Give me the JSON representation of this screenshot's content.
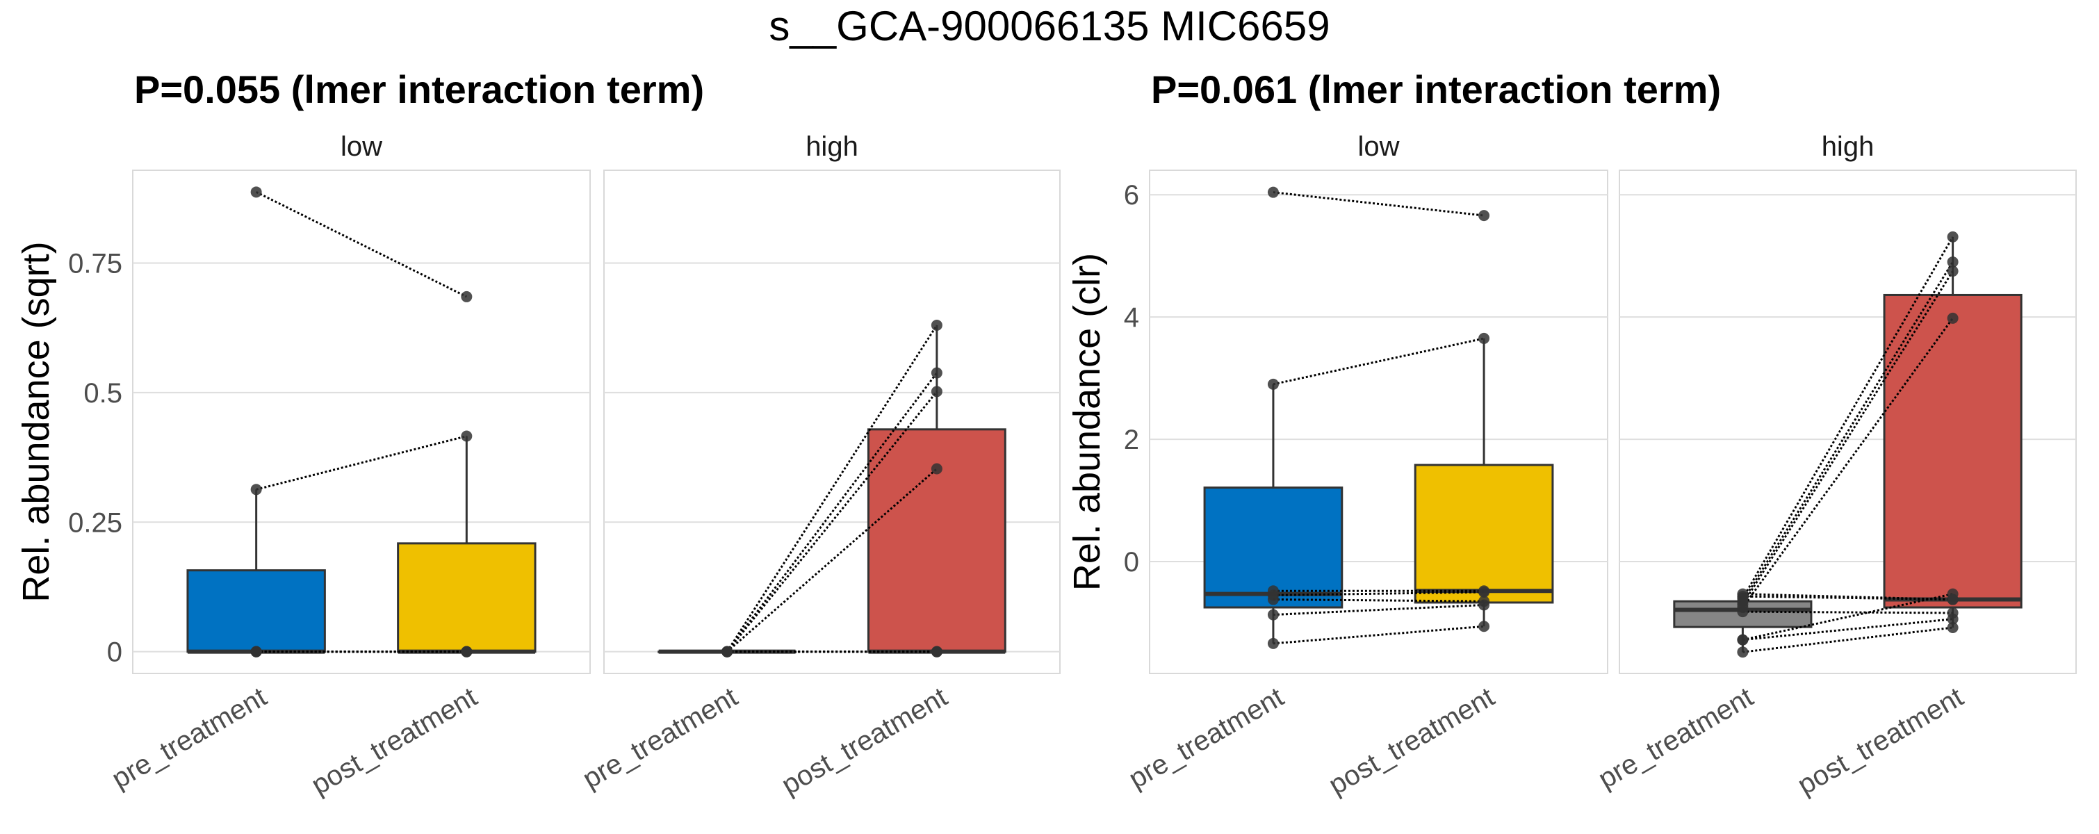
{
  "title": "s__GCA-900066135 MIC6659",
  "colors": {
    "pre_low": "#0072C2",
    "post_low": "#EFC000",
    "pre_high": "#868686",
    "post_high": "#CD534C",
    "grid": "#DEDEDE",
    "panel_border": "#D9D9D9",
    "box_stroke": "#333333",
    "point": "#333333"
  },
  "chart_data": [
    {
      "type": "box",
      "title": "P=0.055 (lmer interaction term)",
      "ylabel": "Rel. abundance (sqrt)",
      "xlabel": "",
      "ylim": [
        -0.042,
        0.929
      ],
      "yticks": [
        0,
        0.25,
        0.5,
        0.75
      ],
      "ytick_labels": [
        "0",
        "0.25",
        "0.5",
        "0.75"
      ],
      "grid": true,
      "facets": [
        {
          "strip": "low",
          "categories": [
            "pre_treatment",
            "post_treatment"
          ],
          "boxes": [
            {
              "category": "pre_treatment",
              "color_key": "pre_low",
              "min": 0,
              "q1": 0,
              "median": 0,
              "q3": 0.157,
              "max": 0.313
            },
            {
              "category": "post_treatment",
              "color_key": "post_low",
              "min": 0,
              "q1": 0,
              "median": 0,
              "q3": 0.209,
              "max": 0.416
            }
          ],
          "pairs": [
            {
              "pre": 0.887,
              "post": 0.685
            },
            {
              "pre": 0.313,
              "post": 0.416
            },
            {
              "pre": 0,
              "post": 0
            },
            {
              "pre": 0,
              "post": 0
            },
            {
              "pre": 0,
              "post": 0
            },
            {
              "pre": 0,
              "post": 0
            },
            {
              "pre": 0,
              "post": 0
            }
          ]
        },
        {
          "strip": "high",
          "categories": [
            "pre_treatment",
            "post_treatment"
          ],
          "boxes": [
            {
              "category": "pre_treatment",
              "color_key": "pre_high",
              "min": 0,
              "q1": 0,
              "median": 0,
              "q3": 0,
              "max": 0
            },
            {
              "category": "post_treatment",
              "color_key": "post_high",
              "min": 0,
              "q1": 0,
              "median": 0,
              "q3": 0.429,
              "max": 0.63
            }
          ],
          "pairs": [
            {
              "pre": 0,
              "post": 0.63
            },
            {
              "pre": 0,
              "post": 0.538
            },
            {
              "pre": 0,
              "post": 0.502
            },
            {
              "pre": 0,
              "post": 0.353
            },
            {
              "pre": 0,
              "post": 0
            },
            {
              "pre": 0,
              "post": 0
            },
            {
              "pre": 0,
              "post": 0
            },
            {
              "pre": 0,
              "post": 0
            }
          ]
        }
      ]
    },
    {
      "type": "box",
      "title": "P=0.061 (lmer interaction term)",
      "ylabel": "Rel. abundance (clr)",
      "xlabel": "",
      "ylim": [
        -1.83,
        6.4
      ],
      "yticks": [
        0,
        2,
        4,
        6
      ],
      "ytick_labels": [
        "0",
        "2",
        "4",
        "6"
      ],
      "grid": true,
      "facets": [
        {
          "strip": "low",
          "categories": [
            "pre_treatment",
            "post_treatment"
          ],
          "boxes": [
            {
              "category": "pre_treatment",
              "color_key": "pre_low",
              "min": -1.34,
              "q1": -0.75,
              "median": -0.53,
              "q3": 1.21,
              "max": 2.9
            },
            {
              "category": "post_treatment",
              "color_key": "post_low",
              "min": -1.06,
              "q1": -0.67,
              "median": -0.48,
              "q3": 1.58,
              "max": 3.65
            }
          ],
          "pairs": [
            {
              "pre": 6.04,
              "post": 5.66
            },
            {
              "pre": 2.9,
              "post": 3.65
            },
            {
              "pre": -0.48,
              "post": -0.48
            },
            {
              "pre": -0.55,
              "post": -0.5
            },
            {
              "pre": -0.62,
              "post": -0.65
            },
            {
              "pre": -0.87,
              "post": -0.71
            },
            {
              "pre": -1.34,
              "post": -1.06
            }
          ]
        },
        {
          "strip": "high",
          "categories": [
            "pre_treatment",
            "post_treatment"
          ],
          "boxes": [
            {
              "category": "pre_treatment",
              "color_key": "pre_high",
              "min": -1.48,
              "q1": -1.07,
              "median": -0.79,
              "q3": -0.65,
              "max": -0.53
            },
            {
              "category": "post_treatment",
              "color_key": "post_high",
              "min": -1.08,
              "q1": -0.75,
              "median": -0.62,
              "q3": 4.36,
              "max": 5.31
            }
          ],
          "pairs": [
            {
              "pre": -0.6,
              "post": 5.31
            },
            {
              "pre": -0.65,
              "post": 4.9
            },
            {
              "pre": -0.7,
              "post": 4.75
            },
            {
              "pre": -0.75,
              "post": 3.98
            },
            {
              "pre": -1.28,
              "post": -0.53
            },
            {
              "pre": -0.53,
              "post": -0.62
            },
            {
              "pre": -0.57,
              "post": -0.62
            },
            {
              "pre": -0.82,
              "post": -0.84
            },
            {
              "pre": -1.28,
              "post": -0.94
            },
            {
              "pre": -1.48,
              "post": -1.08
            }
          ]
        }
      ]
    }
  ]
}
